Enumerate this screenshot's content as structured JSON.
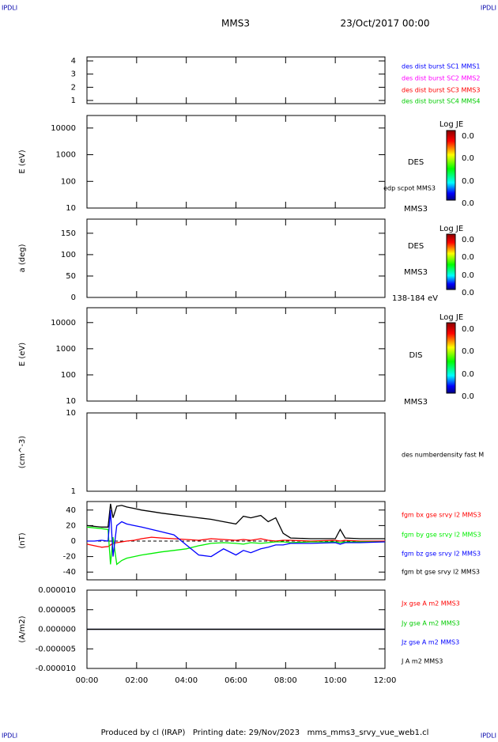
{
  "header": {
    "left": "IPDLI",
    "right": "IPDLI",
    "title": "MMS3",
    "date": "23/Oct/2017 00:00"
  },
  "footer": {
    "text": "Produced by cl (IRAP)   Printing date: 29/Nov/2023   mms_mms3_srvy_vue_web1.cl",
    "left": "IPDLI",
    "right": "IPDLI"
  },
  "chart_data": [
    {
      "type": "line",
      "ylim": [
        0.76,
        4.3
      ],
      "yticks": [
        1,
        2,
        3,
        4
      ],
      "xlim": [
        0,
        12
      ],
      "legend": [
        {
          "text": "des dist burst SC1 MMS1",
          "color": "#0000ff"
        },
        {
          "text": "des dist burst SC2 MMS2",
          "color": "#ff00ff"
        },
        {
          "text": "des dist burst SC3 MMS3",
          "color": "#ff0000"
        },
        {
          "text": "des dist burst SC4 MMS4",
          "color": "#00cc00"
        }
      ]
    },
    {
      "type": "spectrogram",
      "ylabel": "E (eV)",
      "log": true,
      "ylim": [
        10,
        29500
      ],
      "yticks": [
        10,
        100,
        1000,
        10000
      ],
      "xlim": [
        0,
        12
      ],
      "annotations": [
        "DES",
        "edp scpot MMS3",
        "MMS3"
      ],
      "colorbar": {
        "title": "Log JE",
        "ticks": [
          "0.0",
          "0.0",
          "0.0",
          "0.0"
        ]
      }
    },
    {
      "type": "spectrogram",
      "ylabel": "a (deg)",
      "ylim": [
        0,
        183
      ],
      "yticks": [
        0,
        50,
        100,
        150
      ],
      "xlim": [
        0,
        12
      ],
      "annotations": [
        "DES",
        "MMS3",
        "138-184 eV"
      ],
      "colorbar": {
        "title": "Log JE",
        "ticks": [
          "0.0",
          "0.0",
          "0.0",
          "0.0"
        ]
      }
    },
    {
      "type": "spectrogram",
      "ylabel": "E (eV)",
      "log": true,
      "ylim": [
        10,
        37000
      ],
      "yticks": [
        10,
        100,
        1000,
        10000
      ],
      "xlim": [
        0,
        12
      ],
      "annotations": [
        "DIS",
        "MMS3"
      ],
      "colorbar": {
        "title": "Log JE",
        "ticks": [
          "0.0",
          "0.0",
          "0.0",
          "0.0"
        ]
      }
    },
    {
      "type": "line",
      "ylabel": "(cm^-3)",
      "log": true,
      "ylim": [
        1,
        10
      ],
      "yticks": [
        1,
        10
      ],
      "xlim": [
        0,
        12
      ],
      "annotations": [
        "des numberdensity fast M"
      ]
    },
    {
      "type": "line",
      "ylabel": "(nT)",
      "ylim": [
        -50,
        51
      ],
      "yticks": [
        -40,
        -20,
        0,
        20,
        40
      ],
      "xlim": [
        0,
        12
      ],
      "zero_line": true,
      "x": [
        0,
        0.3,
        0.6,
        0.85,
        0.95,
        1.05,
        1.2,
        1.4,
        1.6,
        1.9,
        2.2,
        2.6,
        3,
        3.5,
        4,
        4.5,
        5,
        5.5,
        6,
        6.3,
        6.6,
        7,
        7.3,
        7.6,
        7.9,
        8.2,
        9,
        10,
        10.2,
        10.4,
        11,
        12
      ],
      "series": [
        {
          "name": "fgm bt gse srvy l2 MMS3",
          "color": "#000000",
          "values": [
            20,
            19,
            18,
            18,
            48,
            30,
            45,
            46,
            44,
            42,
            40,
            38,
            36,
            34,
            32,
            30,
            28,
            25,
            22,
            32,
            30,
            33,
            25,
            30,
            10,
            4,
            3,
            3,
            15,
            4,
            3,
            3
          ]
        },
        {
          "name": "fgm bx gse srvy l2 MMS3",
          "color": "#ff0000",
          "values": [
            -4,
            -6,
            -8,
            -7,
            -5,
            -3,
            -2,
            -1,
            0,
            1,
            3,
            5,
            4,
            3,
            2,
            1,
            3,
            2,
            1,
            2,
            1,
            3,
            1,
            0,
            1,
            1,
            0,
            1,
            0,
            1,
            0,
            0
          ]
        },
        {
          "name": "fgm by gse srvy l2 MMS3",
          "color": "#00ee00",
          "values": [
            18,
            17,
            16,
            15,
            -30,
            5,
            -30,
            -25,
            -22,
            -20,
            -18,
            -16,
            -14,
            -12,
            -10,
            -6,
            -3,
            -2,
            -3,
            -4,
            -2,
            -3,
            -2,
            -1,
            -1,
            -2,
            -1,
            -1,
            -2,
            -1,
            -1,
            -1
          ]
        },
        {
          "name": "fgm bz gse srvy l2 MMS3",
          "color": "#0000ff",
          "values": [
            0,
            0,
            1,
            0,
            40,
            -20,
            20,
            25,
            22,
            20,
            18,
            15,
            12,
            8,
            -5,
            -18,
            -20,
            -10,
            -18,
            -12,
            -15,
            -10,
            -8,
            -5,
            -5,
            -3,
            -3,
            -2,
            -4,
            -2,
            -2,
            -1
          ]
        }
      ],
      "legend_order": [
        1,
        2,
        3,
        0
      ]
    },
    {
      "type": "line",
      "ylabel": "(A/m2)",
      "ylim": [
        -1e-05,
        1e-05
      ],
      "xlim": [
        0,
        12
      ],
      "zero_line": true,
      "yticks": [
        {
          "value": 1e-05,
          "label": "0.000010"
        },
        {
          "value": 5e-06,
          "label": "0.000005"
        },
        {
          "value": 0,
          "label": "0.000000"
        },
        {
          "value": -5e-06,
          "label": "-0.000005"
        },
        {
          "value": -1e-05,
          "label": "-0.000010"
        }
      ],
      "xticks": [
        {
          "value": 0,
          "label": "00:00"
        },
        {
          "value": 2,
          "label": "02:00"
        },
        {
          "value": 4,
          "label": "04:00"
        },
        {
          "value": 6,
          "label": "06:00"
        },
        {
          "value": 8,
          "label": "08:00"
        },
        {
          "value": 10,
          "label": "10:00"
        },
        {
          "value": 12,
          "label": "12:00"
        }
      ],
      "x": [
        0,
        2,
        4,
        6,
        8,
        10,
        12
      ],
      "series": [
        {
          "name": "Jx gse A m2 MMS3",
          "color": "#ff0000",
          "values": [
            0,
            0,
            0,
            0,
            0,
            0,
            0
          ]
        },
        {
          "name": "Jy gse A m2 MMS3",
          "color": "#00cc00",
          "values": [
            0,
            0,
            0,
            0,
            0,
            0,
            0
          ]
        },
        {
          "name": "Jz gse A m2 MMS3",
          "color": "#0000ff",
          "values": [
            0,
            0,
            0,
            0,
            0,
            0,
            0
          ]
        },
        {
          "name": "J A m2 MMS3",
          "color": "#000000",
          "values": [
            0,
            0,
            0,
            0,
            0,
            0,
            0
          ]
        }
      ]
    }
  ]
}
